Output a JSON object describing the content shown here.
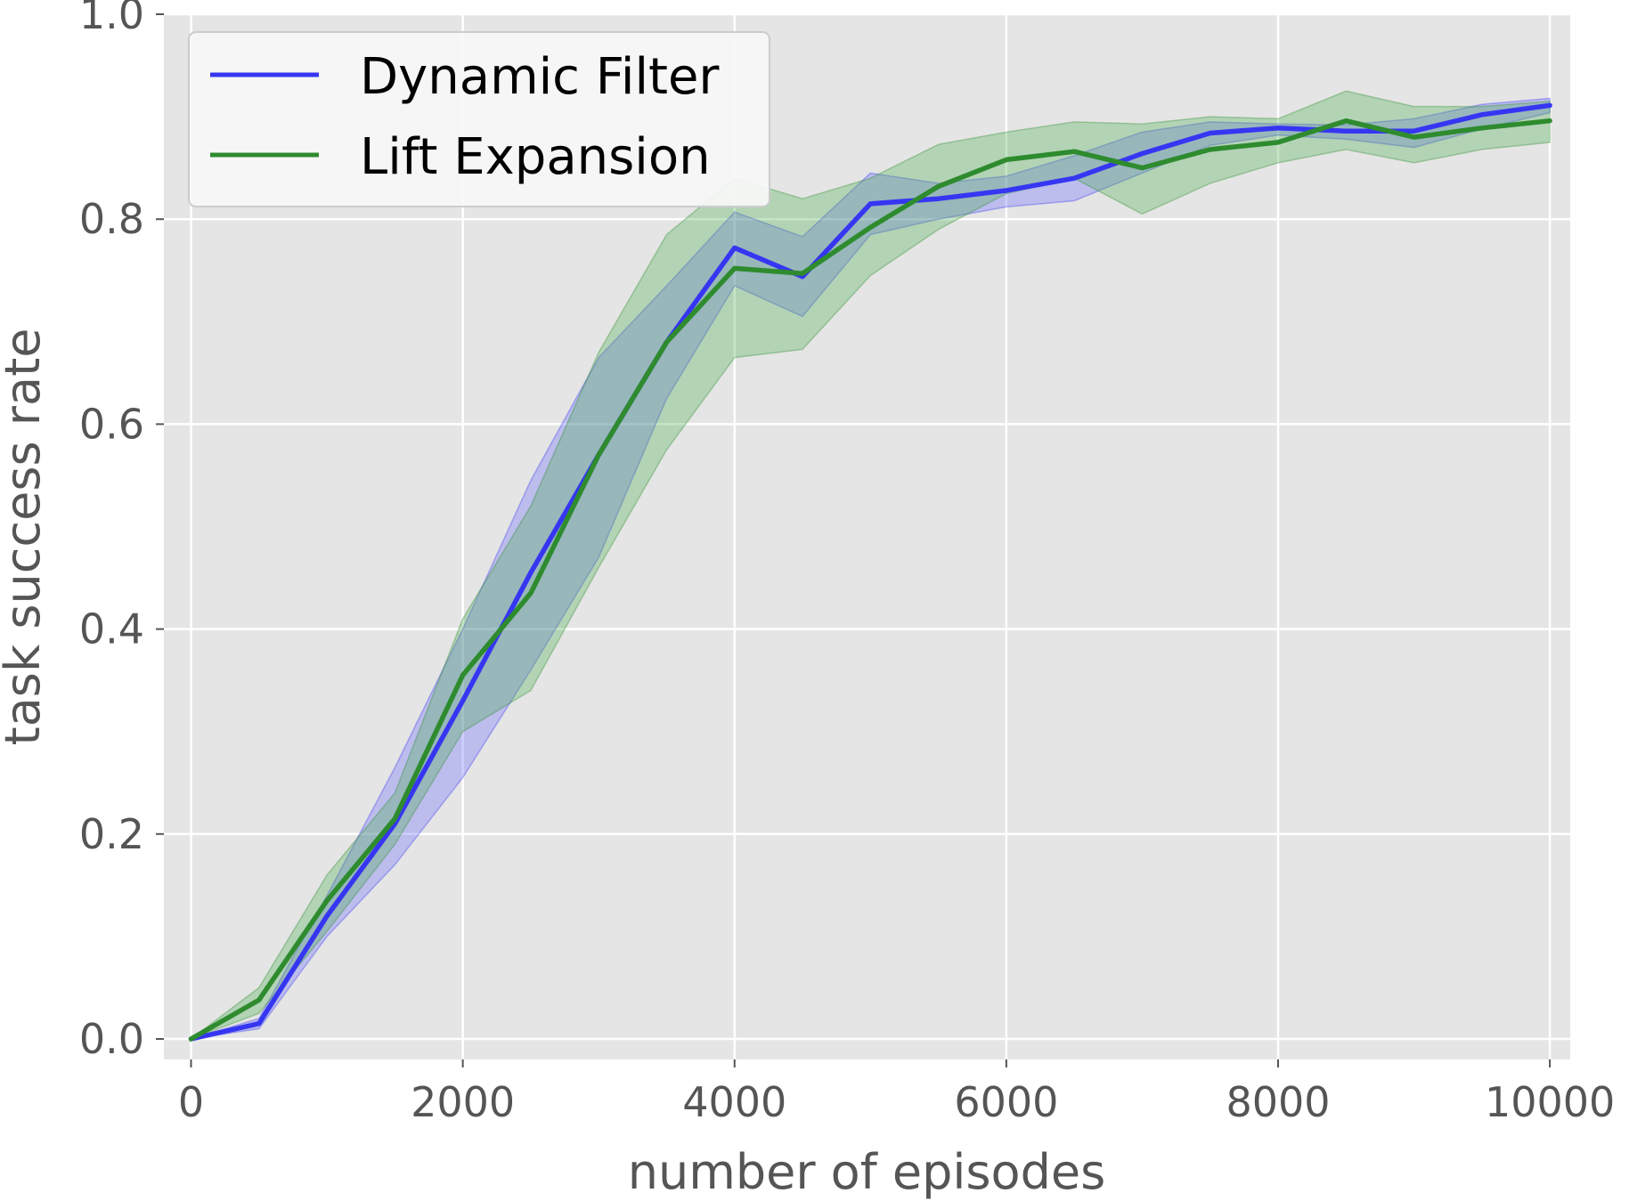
{
  "chart_data": {
    "type": "line",
    "title": "",
    "xlabel": "number of episodes",
    "ylabel": "task success rate",
    "xlim": [
      -200,
      10150
    ],
    "ylim": [
      -0.02,
      1.0
    ],
    "xticks": [
      0,
      2000,
      4000,
      6000,
      8000,
      10000
    ],
    "xtick_labels": [
      "0",
      "2000",
      "4000",
      "6000",
      "8000",
      "10000"
    ],
    "yticks": [
      0.0,
      0.2,
      0.4,
      0.6,
      0.8,
      1.0
    ],
    "ytick_labels": [
      "0.0",
      "0.2",
      "0.4",
      "0.6",
      "0.8",
      "1.0"
    ],
    "grid": true,
    "legend_position": "top-left",
    "x": [
      0,
      500,
      1000,
      1500,
      2000,
      2500,
      3000,
      3500,
      4000,
      4500,
      5000,
      5500,
      6000,
      6500,
      7000,
      7500,
      8000,
      8500,
      9000,
      9500,
      10000
    ],
    "series": [
      {
        "name": "Dynamic Filter",
        "color": "#3636f2",
        "values": [
          0.0,
          0.015,
          0.12,
          0.21,
          0.33,
          0.455,
          0.57,
          0.68,
          0.772,
          0.744,
          0.815,
          0.82,
          0.828,
          0.84,
          0.864,
          0.884,
          0.889,
          0.886,
          0.886,
          0.902,
          0.911
        ],
        "lower": [
          0.0,
          0.01,
          0.1,
          0.17,
          0.255,
          0.36,
          0.47,
          0.625,
          0.735,
          0.705,
          0.785,
          0.8,
          0.812,
          0.818,
          0.845,
          0.872,
          0.882,
          0.878,
          0.87,
          0.888,
          0.904
        ],
        "upper": [
          0.0,
          0.02,
          0.14,
          0.265,
          0.4,
          0.545,
          0.665,
          0.735,
          0.807,
          0.783,
          0.845,
          0.835,
          0.842,
          0.862,
          0.885,
          0.895,
          0.893,
          0.892,
          0.898,
          0.912,
          0.918
        ]
      },
      {
        "name": "Lift Expansion",
        "color": "#2e8b2e",
        "values": [
          0.0,
          0.038,
          0.135,
          0.215,
          0.355,
          0.435,
          0.57,
          0.68,
          0.752,
          0.747,
          0.792,
          0.832,
          0.858,
          0.866,
          0.85,
          0.868,
          0.875,
          0.896,
          0.88,
          0.889,
          0.896
        ],
        "lower": [
          0.0,
          0.025,
          0.105,
          0.19,
          0.3,
          0.34,
          0.46,
          0.575,
          0.665,
          0.673,
          0.745,
          0.79,
          0.825,
          0.84,
          0.805,
          0.835,
          0.855,
          0.868,
          0.855,
          0.868,
          0.875
        ],
        "upper": [
          0.0,
          0.05,
          0.16,
          0.24,
          0.41,
          0.52,
          0.67,
          0.785,
          0.84,
          0.82,
          0.84,
          0.873,
          0.885,
          0.895,
          0.893,
          0.9,
          0.898,
          0.925,
          0.91,
          0.91,
          0.915
        ]
      }
    ]
  }
}
